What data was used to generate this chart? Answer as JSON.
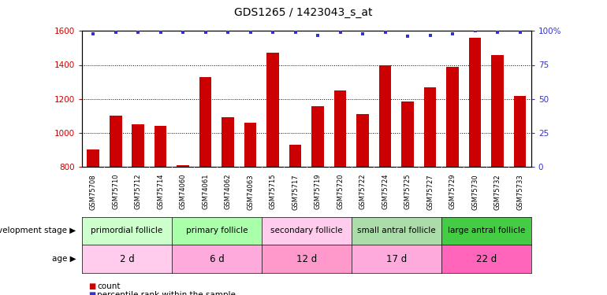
{
  "title": "GDS1265 / 1423043_s_at",
  "samples": [
    "GSM75708",
    "GSM75710",
    "GSM75712",
    "GSM75714",
    "GSM74060",
    "GSM74061",
    "GSM74062",
    "GSM74063",
    "GSM75715",
    "GSM75717",
    "GSM75719",
    "GSM75720",
    "GSM75722",
    "GSM75724",
    "GSM75725",
    "GSM75727",
    "GSM75729",
    "GSM75730",
    "GSM75732",
    "GSM75733"
  ],
  "counts": [
    900,
    1100,
    1050,
    1040,
    810,
    1330,
    1090,
    1060,
    1470,
    930,
    1155,
    1250,
    1110,
    1400,
    1185,
    1270,
    1390,
    1560,
    1460,
    1215
  ],
  "percentiles": [
    98,
    99,
    99,
    99,
    99,
    99,
    99,
    99,
    99,
    99,
    97,
    99,
    98,
    99,
    96,
    97,
    98,
    100,
    99,
    99
  ],
  "bar_color": "#cc0000",
  "dot_color": "#3333cc",
  "ylim_left": [
    800,
    1600
  ],
  "ylim_right": [
    0,
    100
  ],
  "yticks_left": [
    800,
    1000,
    1200,
    1400,
    1600
  ],
  "yticks_right": [
    0,
    25,
    50,
    75,
    100
  ],
  "groups": [
    {
      "label": "primordial follicle",
      "age": "2 d",
      "start": 0,
      "end": 4,
      "group_color": "#ccffcc",
      "age_color": "#ffccee"
    },
    {
      "label": "primary follicle",
      "age": "6 d",
      "start": 4,
      "end": 8,
      "group_color": "#aaffaa",
      "age_color": "#ffaadd"
    },
    {
      "label": "secondary follicle",
      "age": "12 d",
      "start": 8,
      "end": 12,
      "group_color": "#ffccee",
      "age_color": "#ff99cc"
    },
    {
      "label": "small antral follicle",
      "age": "17 d",
      "start": 12,
      "end": 16,
      "group_color": "#aaddaa",
      "age_color": "#ffaadd"
    },
    {
      "label": "large antral follicle",
      "age": "22 d",
      "start": 16,
      "end": 20,
      "group_color": "#44cc44",
      "age_color": "#ff66bb"
    }
  ],
  "legend_count_label": "count",
  "legend_pct_label": "percentile rank within the sample",
  "dev_stage_label": "development stage",
  "age_label": "age",
  "bg_color": "#ffffff",
  "plot_bg": "#ffffff",
  "tick_label_color_left": "#cc0000",
  "tick_label_color_right": "#3333cc",
  "xtick_bg": "#cccccc"
}
